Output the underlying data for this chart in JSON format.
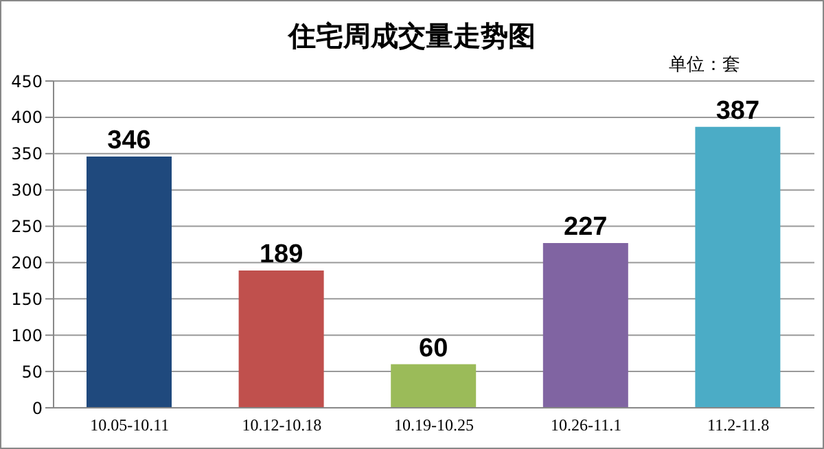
{
  "chart_data": {
    "type": "bar",
    "title": "住宅周成交量走势图",
    "annotations": [
      "单位：套"
    ],
    "categories": [
      "10.05-10.11",
      "10.12-10.18",
      "10.19-10.25",
      "10.26-11.1",
      "11.2-11.8"
    ],
    "values": [
      346,
      189,
      60,
      227,
      387
    ],
    "colors": [
      "#1f497d",
      "#c0504d",
      "#9bbb59",
      "#8064a2",
      "#4bacc6"
    ],
    "ylim": [
      0,
      450
    ],
    "yticks": [
      0,
      50,
      100,
      150,
      200,
      250,
      300,
      350,
      400,
      450
    ],
    "grid": "y",
    "data_labels": true
  }
}
